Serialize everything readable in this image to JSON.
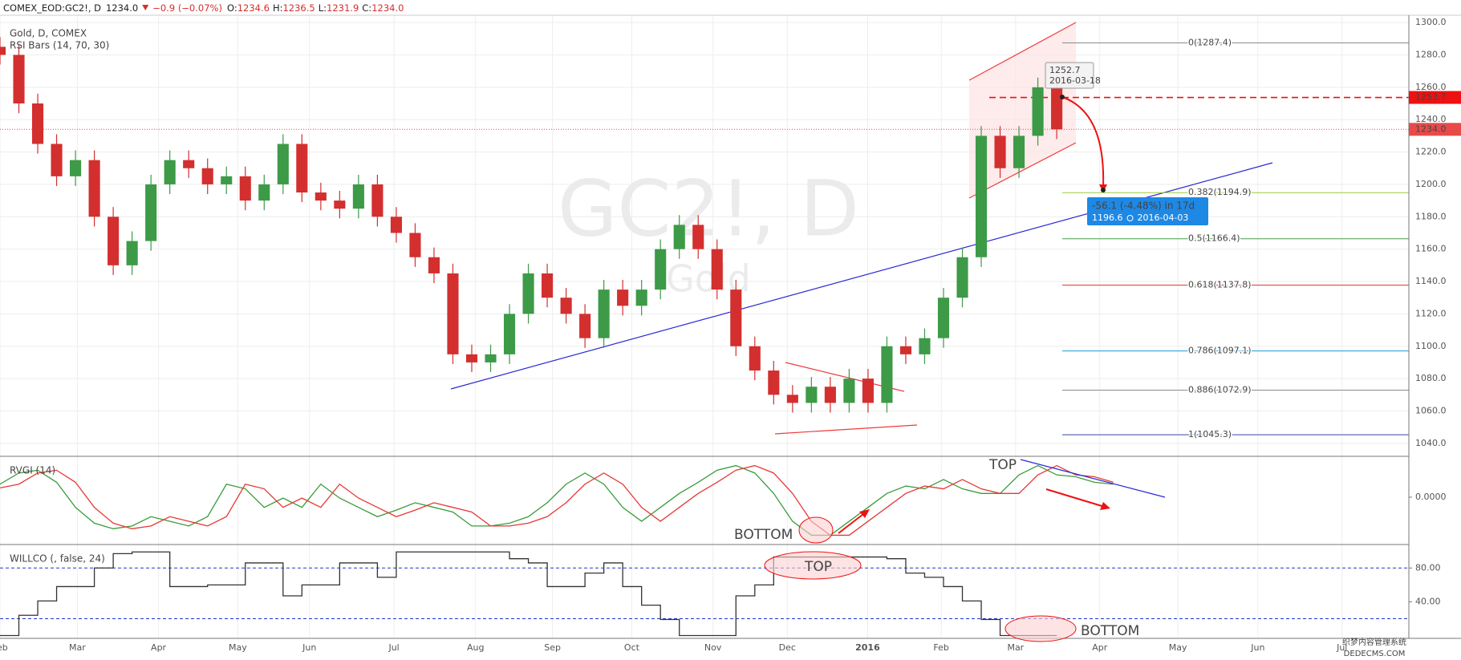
{
  "header": {
    "symbol": "COMEX_EOD:GC2!, D",
    "last": "1234.0",
    "change": "−0.9 (−0.07%)",
    "ohlc": [
      {
        "key": "O:",
        "value": "1234.6"
      },
      {
        "key": "H:",
        "value": "1236.5"
      },
      {
        "key": "L:",
        "value": "1231.9"
      },
      {
        "key": "C:",
        "value": "1234.0"
      }
    ]
  },
  "watermark": {
    "symbol": "GC2!, D",
    "name": "Gold",
    "site": [
      "织梦内容管理系统",
      "DEDECMS.COM"
    ]
  },
  "chart_data": [
    {
      "type": "candlestick",
      "title": "Gold, D, COMEX",
      "subtitle": "RSI Bars (14, 70, 30)",
      "up_color": "#3d9a47",
      "down_color": "#d32f2f",
      "grid": true,
      "xlim": [
        0,
        373.3
      ],
      "xticks": [
        {
          "value": 0,
          "label": "Feb"
        },
        {
          "value": 20.5,
          "label": "Mar"
        },
        {
          "value": 42,
          "label": "Apr"
        },
        {
          "value": 63,
          "label": "May"
        },
        {
          "value": 82,
          "label": "Jun"
        },
        {
          "value": 104.4,
          "label": "Jul"
        },
        {
          "value": 126,
          "label": "Aug"
        },
        {
          "value": 146.4,
          "label": "Sep"
        },
        {
          "value": 167.4,
          "label": "Oct"
        },
        {
          "value": 188.9,
          "label": "Nov"
        },
        {
          "value": 208.6,
          "label": "Dec"
        },
        {
          "value": 229.9,
          "label": "2016"
        },
        {
          "value": 249.4,
          "label": "Feb"
        },
        {
          "value": 269.1,
          "label": "Mar"
        },
        {
          "value": 291.4,
          "label": "Apr"
        },
        {
          "value": 312.1,
          "label": "May"
        },
        {
          "value": 333.3,
          "label": "Jun"
        },
        {
          "value": 355.6,
          "label": "Jul"
        }
      ],
      "ylim": [
        1032,
        1304.5
      ],
      "yticks": [
        {
          "value": 1040,
          "label": "1040.0"
        },
        {
          "value": 1060,
          "label": "1060.0"
        },
        {
          "value": 1080,
          "label": "1080.0"
        },
        {
          "value": 1100,
          "label": "1100.0"
        },
        {
          "value": 1120,
          "label": "1120.0"
        },
        {
          "value": 1140,
          "label": "1140.0"
        },
        {
          "value": 1160,
          "label": "1160.0"
        },
        {
          "value": 1180,
          "label": "1180.0"
        },
        {
          "value": 1200,
          "label": "1200.0"
        },
        {
          "value": 1220,
          "label": "1220.0"
        },
        {
          "value": 1240,
          "label": "1240.0"
        },
        {
          "value": 1260,
          "label": "1260.0"
        },
        {
          "value": 1280,
          "label": "1280.0"
        },
        {
          "value": 1300,
          "label": "1300.0"
        }
      ],
      "x": [
        0,
        5,
        10,
        15,
        20,
        25,
        30,
        35,
        40,
        45,
        50,
        55,
        60,
        65,
        70,
        75,
        80,
        85,
        90,
        95,
        100,
        105,
        110,
        115,
        120,
        125,
        130,
        135,
        140,
        145,
        150,
        155,
        160,
        165,
        170,
        175,
        180,
        185,
        190,
        195,
        200,
        205,
        210,
        215,
        220,
        225,
        230,
        235,
        240,
        245,
        250,
        255,
        260,
        265,
        270,
        275,
        280
      ],
      "open": [
        1285,
        1280,
        1250,
        1225,
        1205,
        1215,
        1180,
        1150,
        1165,
        1200,
        1215,
        1210,
        1200,
        1205,
        1190,
        1200,
        1225,
        1195,
        1190,
        1185,
        1200,
        1180,
        1170,
        1155,
        1145,
        1095,
        1090,
        1095,
        1120,
        1145,
        1130,
        1120,
        1105,
        1135,
        1125,
        1135,
        1160,
        1175,
        1160,
        1135,
        1100,
        1085,
        1070,
        1065,
        1075,
        1065,
        1080,
        1065,
        1100,
        1095,
        1105,
        1130,
        1155,
        1230,
        1210,
        1230,
        1260
      ],
      "high": [
        1291,
        1286,
        1256,
        1231,
        1221,
        1221,
        1186,
        1171,
        1206,
        1221,
        1221,
        1216,
        1211,
        1211,
        1206,
        1231,
        1231,
        1201,
        1196,
        1206,
        1206,
        1186,
        1176,
        1161,
        1151,
        1101,
        1101,
        1126,
        1151,
        1151,
        1136,
        1126,
        1141,
        1141,
        1141,
        1166,
        1181,
        1181,
        1166,
        1141,
        1106,
        1091,
        1076,
        1081,
        1081,
        1086,
        1086,
        1106,
        1106,
        1111,
        1136,
        1161,
        1236,
        1236,
        1236,
        1266,
        1266
      ],
      "low": [
        1274,
        1244,
        1219,
        1199,
        1199,
        1174,
        1144,
        1144,
        1159,
        1194,
        1204,
        1194,
        1194,
        1184,
        1184,
        1194,
        1189,
        1184,
        1179,
        1179,
        1174,
        1164,
        1149,
        1139,
        1089,
        1084,
        1084,
        1089,
        1114,
        1124,
        1114,
        1099,
        1099,
        1119,
        1119,
        1129,
        1154,
        1154,
        1129,
        1094,
        1079,
        1064,
        1059,
        1059,
        1059,
        1059,
        1059,
        1059,
        1089,
        1089,
        1099,
        1124,
        1149,
        1204,
        1204,
        1224,
        1228
      ],
      "close": [
        1280,
        1250,
        1225,
        1205,
        1215,
        1180,
        1150,
        1165,
        1200,
        1215,
        1210,
        1200,
        1205,
        1190,
        1200,
        1225,
        1195,
        1190,
        1185,
        1200,
        1180,
        1170,
        1155,
        1145,
        1095,
        1090,
        1095,
        1120,
        1145,
        1130,
        1120,
        1105,
        1135,
        1125,
        1135,
        1160,
        1175,
        1160,
        1135,
        1100,
        1085,
        1070,
        1065,
        1075,
        1065,
        1080,
        1065,
        1100,
        1095,
        1105,
        1130,
        1155,
        1230,
        1210,
        1230,
        1260,
        1234
      ],
      "fib_levels": [
        {
          "value": 1287.4,
          "label": "0(1287.4)",
          "color": "#8a8a8a"
        },
        {
          "value": 1194.9,
          "label": "0.382(1194.9)",
          "color": "#9ccc3c"
        },
        {
          "value": 1166.4,
          "label": "0.5(1166.4)",
          "color": "#43a047"
        },
        {
          "value": 1137.8,
          "label": "0.618(1137.8)",
          "color": "#e53935"
        },
        {
          "value": 1097.1,
          "label": "0.786(1097.1)",
          "color": "#1e9bd7"
        },
        {
          "value": 1072.9,
          "label": "0.886(1072.9)",
          "color": "#8a8a8a"
        },
        {
          "value": 1045.3,
          "label": "1(1045.3)",
          "color": "#3949ab"
        }
      ],
      "price_tags": [
        {
          "value": 1253.7,
          "label": "1253.7",
          "color": "#ee1111"
        },
        {
          "value": 1234.0,
          "label": "1234.0",
          "color": "#e84a4a"
        }
      ],
      "tooltip": [
        "1252.7",
        "2016-03-18"
      ],
      "projection": {
        "change": "-56.1 (-4.48%) in 17d",
        "price": "1196.6",
        "date": "2016-04-03"
      }
    },
    {
      "type": "line",
      "title": "RVGI (14)",
      "ylim": [
        -0.51,
        0.44
      ],
      "yticks": [
        {
          "value": 0,
          "label": "0.0000"
        }
      ],
      "x": [
        0,
        5,
        10,
        15,
        20,
        25,
        30,
        35,
        40,
        45,
        50,
        55,
        60,
        65,
        70,
        75,
        80,
        85,
        90,
        95,
        100,
        105,
        110,
        115,
        120,
        125,
        130,
        135,
        140,
        145,
        150,
        155,
        160,
        165,
        170,
        175,
        180,
        185,
        190,
        195,
        200,
        205,
        210,
        215,
        220,
        225,
        230,
        235,
        240,
        245,
        250,
        255,
        260,
        265,
        270,
        275,
        280,
        285,
        290,
        295
      ],
      "series": [
        {
          "color": "#3a9b3a",
          "values": [
            0.14,
            0.26,
            0.29,
            0.16,
            -0.11,
            -0.28,
            -0.34,
            -0.31,
            -0.21,
            -0.26,
            -0.31,
            -0.21,
            0.14,
            0.09,
            -0.11,
            -0.01,
            -0.11,
            0.14,
            -0.01,
            -0.11,
            -0.21,
            -0.14,
            -0.06,
            -0.11,
            -0.16,
            -0.31,
            -0.31,
            -0.28,
            -0.21,
            -0.06,
            0.14,
            0.26,
            0.14,
            -0.11,
            -0.26,
            -0.11,
            0.04,
            0.16,
            0.29,
            0.34,
            0.26,
            0.04,
            -0.26,
            -0.41,
            -0.41,
            -0.26,
            -0.11,
            0.04,
            0.12,
            0.09,
            0.19,
            0.09,
            0.04,
            0.04,
            0.24,
            0.34,
            0.24,
            0.22,
            0.16,
            0.14
          ]
        },
        {
          "color": "#e53935",
          "values": [
            0.1,
            0.14,
            0.26,
            0.29,
            0.16,
            -0.11,
            -0.28,
            -0.34,
            -0.31,
            -0.21,
            -0.26,
            -0.31,
            -0.21,
            0.14,
            0.09,
            -0.11,
            -0.01,
            -0.11,
            0.14,
            -0.01,
            -0.11,
            -0.21,
            -0.14,
            -0.06,
            -0.11,
            -0.16,
            -0.31,
            -0.31,
            -0.28,
            -0.21,
            -0.06,
            0.14,
            0.26,
            0.14,
            -0.11,
            -0.26,
            -0.11,
            0.04,
            0.16,
            0.29,
            0.34,
            0.26,
            0.04,
            -0.26,
            -0.41,
            -0.41,
            -0.26,
            -0.11,
            0.04,
            0.12,
            0.09,
            0.19,
            0.09,
            0.04,
            0.04,
            0.24,
            0.34,
            0.24,
            0.22,
            0.16
          ]
        }
      ],
      "annotations": [
        "TOP",
        "BOTTOM"
      ]
    },
    {
      "type": "line",
      "step": true,
      "title": "WILLCO (, false, 24)",
      "ylim": [
        -3.3,
        107.8
      ],
      "yticks": [
        {
          "value": 80,
          "label": "80.00"
        },
        {
          "value": 40,
          "label": "40.00"
        }
      ],
      "bands": [
        80,
        20
      ],
      "band_color": "#2233cc",
      "x": [
        0,
        5,
        10,
        15,
        20,
        25,
        30,
        35,
        40,
        45,
        50,
        55,
        60,
        65,
        70,
        75,
        80,
        85,
        90,
        95,
        100,
        105,
        110,
        115,
        120,
        125,
        130,
        135,
        140,
        145,
        150,
        155,
        160,
        165,
        170,
        175,
        180,
        185,
        190,
        195,
        200,
        205,
        210,
        215,
        220,
        225,
        230,
        235,
        240,
        245,
        250,
        255,
        260,
        265,
        270,
        275,
        280
      ],
      "series": [
        {
          "color": "#333333",
          "values": [
            0,
            24,
            41,
            58,
            58,
            80,
            97,
            99,
            99,
            58,
            58,
            60,
            60,
            86,
            86,
            47,
            60,
            60,
            86,
            86,
            69,
            99,
            99,
            99,
            99,
            99,
            99,
            91,
            86,
            58,
            58,
            74,
            86,
            58,
            36,
            19,
            0,
            0,
            0,
            47,
            60,
            93,
            93,
            93,
            93,
            93,
            93,
            91,
            74,
            69,
            58,
            41,
            19,
            0,
            0,
            0,
            0
          ]
        }
      ],
      "annotations": [
        "TOP",
        "BOTTOM"
      ]
    }
  ]
}
